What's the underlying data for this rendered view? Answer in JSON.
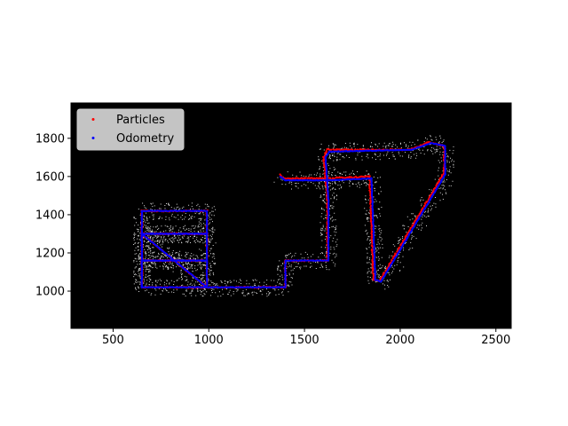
{
  "chart_data": {
    "type": "scatter",
    "title": "",
    "xlabel": "",
    "ylabel": "",
    "xlim": [
      280,
      2580
    ],
    "ylim": [
      805,
      1985
    ],
    "xticks": [
      500,
      1000,
      1500,
      2000,
      2500
    ],
    "yticks": [
      1000,
      1200,
      1400,
      1600,
      1800
    ],
    "background_color": "#000000",
    "map_points_color": "#ffffff",
    "grid": false,
    "legend_position": "top-left",
    "series": [
      {
        "name": "Particles",
        "color": "#ff0000",
        "path": [
          [
            650,
            1020
          ],
          [
            990,
            1020
          ],
          [
            990,
            1420
          ],
          [
            650,
            1420
          ],
          [
            650,
            1020
          ],
          [
            650,
            1160
          ],
          [
            990,
            1160
          ],
          [
            650,
            1160
          ],
          [
            650,
            1300
          ],
          [
            990,
            1300
          ],
          [
            650,
            1300
          ],
          [
            990,
            1020
          ],
          [
            1340,
            1020
          ],
          [
            1400,
            1020
          ],
          [
            1400,
            1160
          ],
          [
            1620,
            1160
          ],
          [
            1620,
            1480
          ],
          [
            1600,
            1700
          ],
          [
            1620,
            1740
          ],
          [
            2050,
            1740
          ],
          [
            2150,
            1780
          ],
          [
            2230,
            1760
          ],
          [
            2230,
            1620
          ],
          [
            1890,
            1050
          ],
          [
            1860,
            1060
          ],
          [
            1840,
            1600
          ],
          [
            1620,
            1590
          ],
          [
            1400,
            1590
          ],
          [
            1370,
            1610
          ]
        ]
      },
      {
        "name": "Odometry",
        "color": "#0000ff",
        "path": [
          [
            650,
            1020
          ],
          [
            990,
            1020
          ],
          [
            990,
            1420
          ],
          [
            650,
            1420
          ],
          [
            650,
            1020
          ],
          [
            650,
            1160
          ],
          [
            990,
            1160
          ],
          [
            650,
            1160
          ],
          [
            650,
            1300
          ],
          [
            990,
            1300
          ],
          [
            650,
            1300
          ],
          [
            990,
            1020
          ],
          [
            1340,
            1020
          ],
          [
            1400,
            1020
          ],
          [
            1400,
            1160
          ],
          [
            1625,
            1160
          ],
          [
            1625,
            1480
          ],
          [
            1610,
            1700
          ],
          [
            1630,
            1730
          ],
          [
            2060,
            1740
          ],
          [
            2160,
            1775
          ],
          [
            2235,
            1760
          ],
          [
            2235,
            1610
          ],
          [
            1900,
            1050
          ],
          [
            1870,
            1060
          ],
          [
            1850,
            1590
          ],
          [
            1630,
            1580
          ],
          [
            1400,
            1580
          ],
          [
            1375,
            1600
          ]
        ]
      }
    ]
  }
}
